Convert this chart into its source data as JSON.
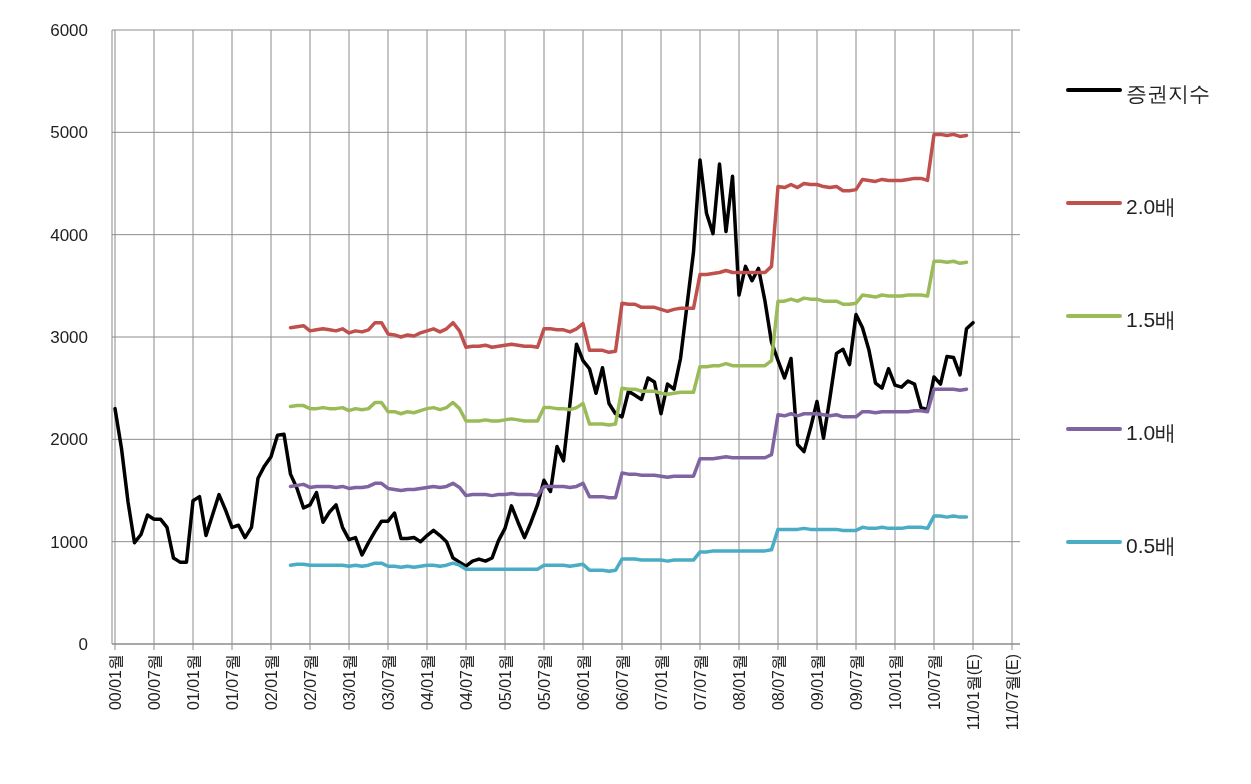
{
  "chart_data": {
    "type": "line",
    "categories": [
      "00/01월",
      null,
      null,
      null,
      null,
      null,
      "00/07월",
      null,
      null,
      null,
      null,
      null,
      "01/01월",
      null,
      null,
      null,
      null,
      null,
      "01/07월",
      null,
      null,
      null,
      null,
      null,
      "02/01월",
      null,
      null,
      null,
      null,
      null,
      "02/07월",
      null,
      null,
      null,
      null,
      null,
      "03/01월",
      null,
      null,
      null,
      null,
      null,
      "03/07월",
      null,
      null,
      null,
      null,
      null,
      "04/01월",
      null,
      null,
      null,
      null,
      null,
      "04/07월",
      null,
      null,
      null,
      null,
      null,
      "05/01월",
      null,
      null,
      null,
      null,
      null,
      "05/07월",
      null,
      null,
      null,
      null,
      null,
      "06/01월",
      null,
      null,
      null,
      null,
      null,
      "06/07월",
      null,
      null,
      null,
      null,
      null,
      "07/01월",
      null,
      null,
      null,
      null,
      null,
      "07/07월",
      null,
      null,
      null,
      null,
      null,
      "08/01월",
      null,
      null,
      null,
      null,
      null,
      "08/07월",
      null,
      null,
      null,
      null,
      null,
      "09/01월",
      null,
      null,
      null,
      null,
      null,
      "09/07월",
      null,
      null,
      null,
      null,
      null,
      "10/01월",
      null,
      null,
      null,
      null,
      null,
      "10/07월",
      null,
      null,
      null,
      null,
      null,
      "11/01월(E)",
      null,
      null,
      null,
      null,
      null,
      "11/07월(E)"
    ],
    "series": [
      {
        "name": "증권지수",
        "color": "#000000",
        "values": [
          2300,
          1910,
          1390,
          990,
          1070,
          1260,
          1220,
          1220,
          1140,
          840,
          800,
          800,
          1400,
          1440,
          1060,
          1260,
          1460,
          1310,
          1140,
          1160,
          1040,
          1140,
          1620,
          1740,
          1830,
          2040,
          2050,
          1660,
          1520,
          1330,
          1360,
          1480,
          1190,
          1290,
          1360,
          1140,
          1020,
          1040,
          870,
          990,
          1100,
          1200,
          1200,
          1280,
          1030,
          1030,
          1040,
          1000,
          1060,
          1110,
          1060,
          1000,
          840,
          800,
          760,
          810,
          830,
          810,
          840,
          1010,
          1130,
          1350,
          1190,
          1040,
          1190,
          1360,
          1600,
          1490,
          1930,
          1790,
          2350,
          2930,
          2770,
          2690,
          2450,
          2700,
          2350,
          2250,
          2220,
          2470,
          2430,
          2390,
          2600,
          2560,
          2250,
          2540,
          2490,
          2790,
          3310,
          3830,
          4730,
          4210,
          4010,
          4690,
          4030,
          4570,
          3410,
          3690,
          3550,
          3670,
          3350,
          2950,
          2770,
          2600,
          2790,
          1950,
          1880,
          2110,
          2370,
          2010,
          2410,
          2840,
          2880,
          2730,
          3220,
          3090,
          2870,
          2550,
          2500,
          2690,
          2530,
          2510,
          2570,
          2540,
          2310,
          2290,
          2610,
          2540,
          2810,
          2800,
          2630,
          3080,
          3140,
          null,
          null,
          null,
          null,
          null,
          null
        ]
      },
      {
        "name": "2.0배",
        "color": "#c0504d",
        "values": [
          null,
          null,
          null,
          null,
          null,
          null,
          null,
          null,
          null,
          null,
          null,
          null,
          null,
          null,
          null,
          null,
          null,
          null,
          null,
          null,
          null,
          null,
          null,
          null,
          null,
          null,
          null,
          3090,
          3100,
          3110,
          3060,
          3070,
          3080,
          3070,
          3060,
          3080,
          3040,
          3060,
          3050,
          3070,
          3140,
          3140,
          3030,
          3020,
          3000,
          3020,
          3010,
          3040,
          3060,
          3080,
          3050,
          3080,
          3140,
          3060,
          2900,
          2910,
          2910,
          2920,
          2900,
          2910,
          2920,
          2930,
          2920,
          2910,
          2910,
          2900,
          3080,
          3080,
          3070,
          3070,
          3050,
          3080,
          3130,
          2870,
          2870,
          2870,
          2850,
          2860,
          3330,
          3320,
          3320,
          3290,
          3290,
          3290,
          3270,
          3250,
          3270,
          3280,
          3280,
          3280,
          3610,
          3610,
          3620,
          3630,
          3650,
          3630,
          3630,
          3630,
          3630,
          3630,
          3630,
          3690,
          4470,
          4460,
          4490,
          4460,
          4500,
          4490,
          4490,
          4470,
          4460,
          4470,
          4430,
          4430,
          4440,
          4540,
          4530,
          4520,
          4540,
          4530,
          4530,
          4530,
          4540,
          4550,
          4550,
          4530,
          4980,
          4980,
          4970,
          4980,
          4960,
          4970,
          null,
          null,
          null,
          null,
          null,
          null,
          null
        ]
      },
      {
        "name": "1.5배",
        "color": "#9bbb59",
        "values": [
          null,
          null,
          null,
          null,
          null,
          null,
          null,
          null,
          null,
          null,
          null,
          null,
          null,
          null,
          null,
          null,
          null,
          null,
          null,
          null,
          null,
          null,
          null,
          null,
          null,
          null,
          null,
          2320,
          2330,
          2330,
          2300,
          2300,
          2310,
          2300,
          2300,
          2310,
          2280,
          2300,
          2290,
          2300,
          2360,
          2360,
          2270,
          2270,
          2250,
          2270,
          2260,
          2280,
          2300,
          2310,
          2290,
          2310,
          2360,
          2300,
          2180,
          2180,
          2180,
          2190,
          2180,
          2180,
          2190,
          2200,
          2190,
          2180,
          2180,
          2180,
          2310,
          2310,
          2300,
          2300,
          2290,
          2310,
          2350,
          2150,
          2150,
          2150,
          2140,
          2150,
          2500,
          2490,
          2490,
          2470,
          2470,
          2470,
          2450,
          2440,
          2450,
          2460,
          2460,
          2460,
          2710,
          2710,
          2720,
          2720,
          2740,
          2720,
          2720,
          2720,
          2720,
          2720,
          2720,
          2770,
          3350,
          3350,
          3370,
          3350,
          3380,
          3370,
          3370,
          3350,
          3350,
          3350,
          3320,
          3320,
          3330,
          3410,
          3400,
          3390,
          3410,
          3400,
          3400,
          3400,
          3410,
          3410,
          3410,
          3400,
          3740,
          3740,
          3730,
          3740,
          3720,
          3730,
          null,
          null,
          null,
          null,
          null,
          null,
          null
        ]
      },
      {
        "name": "1.0배",
        "color": "#8064a2",
        "values": [
          null,
          null,
          null,
          null,
          null,
          null,
          null,
          null,
          null,
          null,
          null,
          null,
          null,
          null,
          null,
          null,
          null,
          null,
          null,
          null,
          null,
          null,
          null,
          null,
          null,
          null,
          null,
          1540,
          1550,
          1560,
          1530,
          1540,
          1540,
          1540,
          1530,
          1540,
          1520,
          1530,
          1530,
          1540,
          1570,
          1570,
          1520,
          1510,
          1500,
          1510,
          1510,
          1520,
          1530,
          1540,
          1530,
          1540,
          1570,
          1530,
          1450,
          1460,
          1460,
          1460,
          1450,
          1460,
          1460,
          1470,
          1460,
          1460,
          1460,
          1450,
          1540,
          1540,
          1540,
          1540,
          1530,
          1540,
          1570,
          1440,
          1440,
          1440,
          1430,
          1430,
          1670,
          1660,
          1660,
          1650,
          1650,
          1650,
          1640,
          1630,
          1640,
          1640,
          1640,
          1640,
          1810,
          1810,
          1810,
          1820,
          1830,
          1820,
          1820,
          1820,
          1820,
          1820,
          1820,
          1850,
          2240,
          2230,
          2250,
          2230,
          2250,
          2250,
          2250,
          2240,
          2230,
          2240,
          2220,
          2220,
          2220,
          2270,
          2270,
          2260,
          2270,
          2270,
          2270,
          2270,
          2270,
          2280,
          2280,
          2270,
          2490,
          2490,
          2490,
          2490,
          2480,
          2490,
          null,
          null,
          null,
          null,
          null,
          null,
          null
        ]
      },
      {
        "name": "0.5배",
        "color": "#4bacc6",
        "values": [
          null,
          null,
          null,
          null,
          null,
          null,
          null,
          null,
          null,
          null,
          null,
          null,
          null,
          null,
          null,
          null,
          null,
          null,
          null,
          null,
          null,
          null,
          null,
          null,
          null,
          null,
          null,
          770,
          780,
          780,
          770,
          770,
          770,
          770,
          770,
          770,
          760,
          770,
          760,
          770,
          790,
          790,
          760,
          760,
          750,
          760,
          750,
          760,
          770,
          770,
          760,
          770,
          790,
          770,
          730,
          730,
          730,
          730,
          730,
          730,
          730,
          730,
          730,
          730,
          730,
          730,
          770,
          770,
          770,
          770,
          760,
          770,
          780,
          720,
          720,
          720,
          710,
          720,
          830,
          830,
          830,
          820,
          820,
          820,
          820,
          810,
          820,
          820,
          820,
          820,
          900,
          900,
          910,
          910,
          910,
          910,
          910,
          910,
          910,
          910,
          910,
          920,
          1120,
          1120,
          1120,
          1120,
          1130,
          1120,
          1120,
          1120,
          1120,
          1120,
          1110,
          1110,
          1110,
          1140,
          1130,
          1130,
          1140,
          1130,
          1130,
          1130,
          1140,
          1140,
          1140,
          1130,
          1250,
          1250,
          1240,
          1250,
          1240,
          1240,
          null,
          null,
          null,
          null,
          null,
          null,
          null
        ]
      }
    ],
    "ylim": [
      0,
      6000
    ],
    "yticks": [
      0,
      1000,
      2000,
      3000,
      4000,
      5000,
      6000
    ],
    "grid": true,
    "legend": "right",
    "line_style": "solid",
    "marker": "none"
  }
}
